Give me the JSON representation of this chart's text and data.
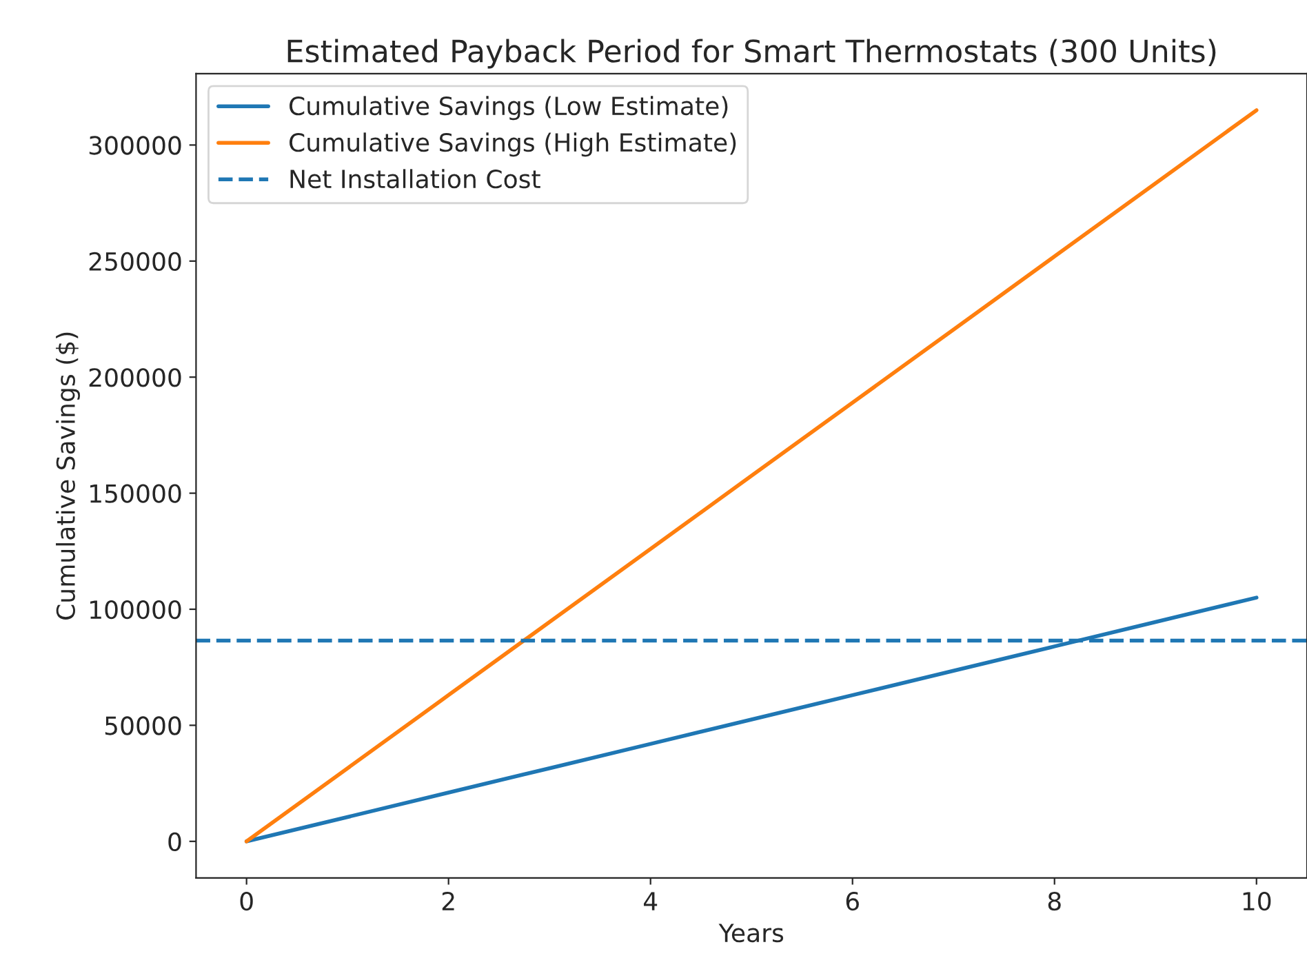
{
  "chart_data": {
    "type": "line",
    "title": "Estimated Payback Period for Smart Thermostats (300 Units)",
    "xlabel": "Years",
    "ylabel": "Cumulative Savings ($)",
    "x": [
      0,
      1,
      2,
      3,
      4,
      5,
      6,
      7,
      8,
      9,
      10
    ],
    "series": [
      {
        "name": "Cumulative Savings (Low Estimate)",
        "color": "#1f77b4",
        "values": [
          0,
          10500,
          21000,
          31500,
          42000,
          52500,
          63000,
          73500,
          84000,
          94500,
          105000
        ]
      },
      {
        "name": "Cumulative Savings (High Estimate)",
        "color": "#ff7f0e",
        "values": [
          0,
          31500,
          63000,
          94500,
          126000,
          157500,
          189000,
          220500,
          252000,
          283500,
          315000
        ]
      }
    ],
    "ref_lines": [
      {
        "axis": "y",
        "value": 86500,
        "label": "Net Installation Cost",
        "color": "#1f77b4",
        "line_style": "dashed"
      }
    ],
    "xlim": [
      -0.5,
      10.5
    ],
    "xticks": [
      0,
      2,
      4,
      6,
      8,
      10
    ],
    "ylim": [
      -15750,
      330750
    ],
    "yticks": [
      0,
      50000,
      100000,
      150000,
      200000,
      250000,
      300000
    ],
    "grid": false,
    "legend": "top left",
    "marker": "none",
    "line_style": "solid"
  }
}
